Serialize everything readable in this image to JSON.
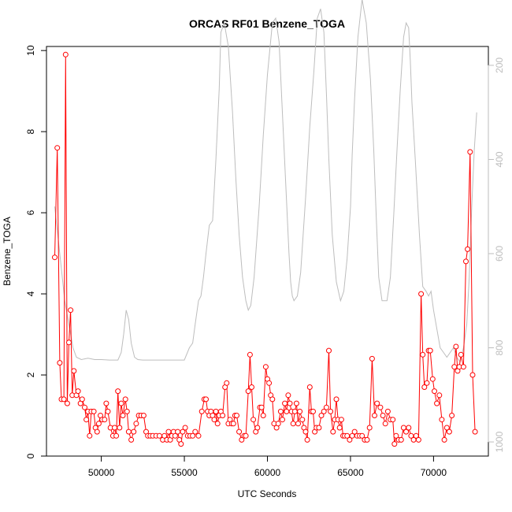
{
  "chart_data": {
    "type": "line",
    "title": "ORCAS RF01 Benzene_TOGA",
    "xlabel": "UTC Seconds",
    "ylabel": "Benzene_TOGA",
    "xlim": [
      46700,
      73300
    ],
    "ylim": [
      0,
      10.1
    ],
    "x_ticks": [
      50000,
      55000,
      60000,
      65000,
      70000
    ],
    "x_tick_labels": [
      "50000",
      "55000",
      "60000",
      "65000",
      "70000"
    ],
    "y_ticks": [
      0,
      2,
      4,
      6,
      8,
      10
    ],
    "y_tick_labels": [
      "0",
      "2",
      "4",
      "6",
      "8",
      "10"
    ],
    "y2_lim": [
      1030,
      160
    ],
    "y2_ticks": [
      200,
      400,
      600,
      800,
      1000
    ],
    "y2_tick_labels": [
      "200",
      "400",
      "600",
      "800",
      "1000"
    ],
    "grid": false,
    "colors": {
      "series": "#ff0000",
      "secondary": "#bdbdbd",
      "axis": "#000000"
    },
    "series": [
      {
        "axis": "left",
        "style": "line+circle",
        "x": [
          47200,
          47350,
          47500,
          47600,
          47750,
          47850,
          47950,
          48050,
          48150,
          48250,
          48350,
          48500,
          48600,
          48750,
          48850,
          49000,
          49100,
          49200,
          49300,
          49400,
          49550,
          49650,
          49750,
          49850,
          49950,
          50050,
          50200,
          50300,
          50400,
          50550,
          50700,
          50800,
          50900,
          51000,
          51100,
          51200,
          51300,
          51450,
          51550,
          51650,
          51800,
          51950,
          52100,
          52250,
          52400,
          52550,
          52700,
          52800,
          52950,
          53100,
          53300,
          53500,
          53700,
          53800,
          53950,
          54050,
          54150,
          54250,
          54350,
          54450,
          54600,
          54700,
          54800,
          54900,
          55050,
          55200,
          55350,
          55500,
          55650,
          55850,
          56050,
          56200,
          56300,
          56400,
          56500,
          56600,
          56700,
          56800,
          56900,
          57000,
          57100,
          57200,
          57300,
          57450,
          57550,
          57650,
          57750,
          57850,
          57950,
          58050,
          58150,
          58300,
          58450,
          58600,
          58700,
          58850,
          58950,
          59050,
          59150,
          59300,
          59400,
          59550,
          59650,
          59750,
          59900,
          60000,
          60100,
          60200,
          60300,
          60400,
          60550,
          60650,
          60800,
          60900,
          61050,
          61150,
          61250,
          61350,
          61450,
          61550,
          61650,
          61750,
          61850,
          61950,
          62100,
          62200,
          62300,
          62400,
          62550,
          62650,
          62750,
          62850,
          62950,
          63100,
          63250,
          63400,
          63550,
          63700,
          63800,
          63950,
          64050,
          64150,
          64250,
          64350,
          64450,
          64550,
          64650,
          64800,
          64950,
          65100,
          65250,
          65400,
          65550,
          65700,
          65850,
          66000,
          66150,
          66300,
          66450,
          66600,
          66800,
          66950,
          67100,
          67250,
          67400,
          67550,
          67650,
          67750,
          67900,
          68050,
          68200,
          68350,
          68500,
          68650,
          68800,
          68950,
          69100,
          69250,
          69350,
          69450,
          69600,
          69700,
          69800,
          69950,
          70050,
          70200,
          70350,
          70500,
          70650,
          70800,
          70950,
          71100,
          71250,
          71350,
          71450,
          71550,
          71650,
          71800,
          71950,
          72050,
          72200,
          72350,
          72500
        ],
        "y": [
          4.9,
          7.6,
          2.3,
          1.4,
          1.4,
          9.9,
          1.3,
          2.8,
          3.6,
          1.5,
          2.1,
          1.5,
          1.6,
          1.3,
          1.4,
          1.2,
          0.9,
          1.1,
          0.5,
          1.1,
          1.1,
          0.7,
          0.6,
          0.8,
          1.0,
          0.9,
          0.9,
          1.3,
          1.1,
          0.7,
          0.5,
          0.7,
          0.5,
          1.6,
          0.7,
          1.3,
          1.0,
          1.4,
          1.1,
          0.6,
          0.4,
          0.6,
          0.8,
          1.0,
          1.0,
          1.0,
          0.6,
          0.5,
          0.5,
          0.5,
          0.5,
          0.5,
          0.4,
          0.5,
          0.4,
          0.6,
          0.4,
          0.5,
          0.6,
          0.5,
          0.6,
          0.4,
          0.3,
          0.6,
          0.7,
          0.5,
          0.5,
          0.5,
          0.6,
          0.5,
          1.1,
          1.4,
          1.4,
          1.1,
          1.0,
          1.1,
          1.0,
          0.9,
          1.1,
          0.8,
          1.0,
          1.1,
          1.0,
          1.7,
          1.8,
          0.8,
          0.9,
          0.8,
          0.8,
          1.0,
          1.0,
          0.6,
          0.4,
          0.5,
          0.5,
          1.6,
          2.5,
          1.7,
          0.9,
          0.6,
          0.7,
          1.2,
          1.2,
          1.0,
          2.2,
          1.9,
          1.8,
          1.5,
          1.4,
          0.8,
          0.7,
          0.8,
          1.1,
          0.9,
          1.3,
          1.1,
          1.5,
          1.3,
          1.1,
          0.8,
          1.1,
          1.3,
          0.8,
          1.1,
          0.9,
          0.7,
          0.6,
          0.4,
          1.7,
          1.1,
          1.1,
          0.6,
          0.7,
          0.7,
          1.0,
          1.1,
          1.2,
          2.6,
          1.1,
          0.6,
          0.9,
          1.4,
          0.9,
          0.7,
          0.9,
          0.5,
          0.5,
          0.5,
          0.4,
          0.5,
          0.6,
          0.5,
          0.5,
          0.5,
          0.4,
          0.4,
          0.7,
          2.4,
          1.0,
          1.3,
          1.2,
          1.0,
          0.8,
          1.1,
          0.9,
          0.9,
          0.3,
          0.5,
          0.4,
          0.4,
          0.7,
          0.6,
          0.7,
          0.5,
          0.4,
          0.5,
          0.4,
          4.0,
          2.5,
          1.7,
          1.8,
          2.6,
          2.6,
          1.9,
          1.6,
          1.3,
          1.5,
          0.9,
          0.4,
          0.7,
          0.6,
          1.0,
          2.2,
          2.7,
          2.1,
          2.2,
          2.5,
          2.2,
          4.8,
          5.1,
          7.5,
          2.0,
          0.6
        ]
      },
      {
        "axis": "right",
        "style": "line",
        "x": [
          47200,
          47500,
          47800,
          48100,
          48300,
          48500,
          48800,
          49200,
          49600,
          50000,
          50500,
          51000,
          51200,
          51350,
          51500,
          51650,
          51800,
          52000,
          52200,
          52500,
          53000,
          53500,
          54000,
          54500,
          55000,
          55300,
          55500,
          55650,
          55850,
          56000,
          56150,
          56300,
          56500,
          56700,
          56900,
          57100,
          57200,
          57400,
          57650,
          57900,
          58100,
          58300,
          58500,
          58700,
          58850,
          59000,
          59200,
          59500,
          59750,
          60000,
          60300,
          60500,
          60700,
          60900,
          61100,
          61300,
          61400,
          61500,
          61600,
          61800,
          62000,
          62300,
          62550,
          62800,
          63000,
          63200,
          63400,
          63550,
          63700,
          63900,
          64150,
          64400,
          64600,
          64800,
          65000,
          65100,
          65250,
          65450,
          65700,
          65950,
          66200,
          66400,
          66550,
          66700,
          66900,
          67050,
          67200,
          67400,
          67600,
          67800,
          68000,
          68200,
          68350,
          68500,
          68600,
          68700,
          68900,
          69150,
          69350,
          69550,
          69700,
          69850,
          70000,
          70200,
          70400,
          70600,
          70800,
          71000,
          71200,
          71400,
          71600,
          71800,
          72000,
          72150,
          72300,
          72450,
          72600
        ],
        "y": [
          500,
          600,
          700,
          760,
          800,
          820,
          825,
          822,
          825,
          825,
          826,
          826,
          810,
          770,
          720,
          740,
          790,
          820,
          825,
          826,
          826,
          826,
          826,
          826,
          826,
          800,
          790,
          750,
          700,
          690,
          650,
          600,
          540,
          530,
          400,
          250,
          130,
          110,
          160,
          300,
          440,
          560,
          650,
          700,
          720,
          710,
          650,
          500,
          350,
          220,
          110,
          100,
          150,
          300,
          450,
          600,
          660,
          690,
          700,
          690,
          640,
          480,
          330,
          210,
          100,
          80,
          130,
          260,
          400,
          560,
          660,
          700,
          680,
          610,
          500,
          390,
          270,
          140,
          60,
          110,
          230,
          380,
          520,
          650,
          700,
          700,
          700,
          650,
          520,
          380,
          250,
          140,
          110,
          120,
          190,
          280,
          400,
          560,
          670,
          680,
          690,
          680,
          720,
          760,
          800,
          810,
          820,
          810,
          800,
          820,
          830,
          800,
          750,
          650,
          500,
          380,
          300
        ]
      }
    ]
  }
}
